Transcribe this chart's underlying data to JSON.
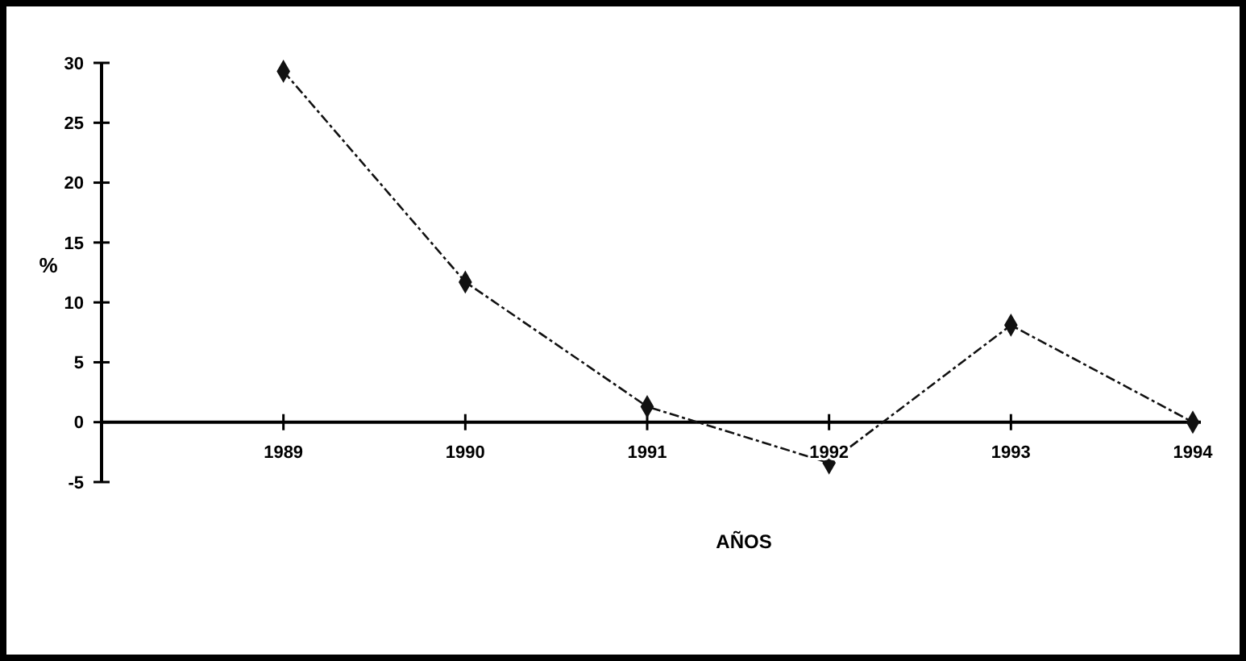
{
  "chart_data": {
    "type": "line",
    "xlabel": "AÑOS",
    "ylabel": "%",
    "categories": [
      "1989",
      "1990",
      "1991",
      "1992",
      "1993",
      "1994"
    ],
    "series": [
      {
        "color": "#111111",
        "values": [
          29.3,
          11.7,
          1.3,
          -3.4,
          8.1,
          0
        ]
      }
    ],
    "ylim": [
      -5,
      30
    ],
    "yticks": [
      -5,
      0,
      5,
      10,
      15,
      20,
      25,
      30
    ],
    "marker": "diamond",
    "line_style": "dashed"
  }
}
